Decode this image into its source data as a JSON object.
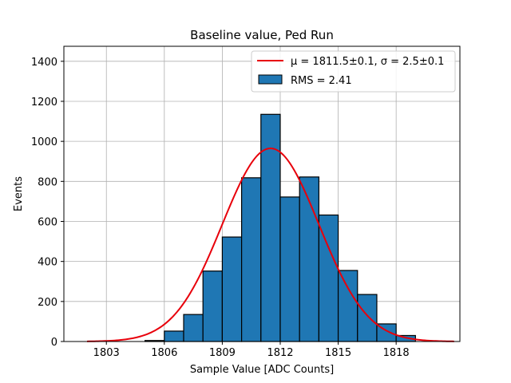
{
  "chart_data": {
    "type": "bar",
    "title": "Baseline value, Ped Run",
    "xlabel": "Sample Value [ADC Counts]",
    "ylabel": "Events",
    "xlim": [
      1800.8,
      1821.3
    ],
    "ylim": [
      0,
      1475
    ],
    "xticks": [
      1803,
      1806,
      1809,
      1812,
      1815,
      1818
    ],
    "yticks": [
      0,
      200,
      400,
      600,
      800,
      1000,
      1200,
      1400
    ],
    "grid": true,
    "legend_placement": "top-right",
    "bin_width": 1,
    "bins": [
      1805,
      1806,
      1807,
      1808,
      1809,
      1810,
      1811,
      1812,
      1813,
      1814,
      1815,
      1816,
      1817,
      1818
    ],
    "counts": [
      5,
      52,
      135,
      352,
      522,
      818,
      1135,
      722,
      822,
      632,
      355,
      235,
      88,
      30
    ],
    "bar_color": "#1f77b4",
    "fit": {
      "mu": 1811.5,
      "sigma": 2.5,
      "peak": 965,
      "x_range": [
        1802,
        1821
      ],
      "color": "#e8000b"
    },
    "legend": {
      "fit_label_prefix": "μ = 1811.5±0.1, ",
      "fit_label_suffix": "σ = 2.5±0.1",
      "hist_label": "RMS = 2.41"
    }
  }
}
